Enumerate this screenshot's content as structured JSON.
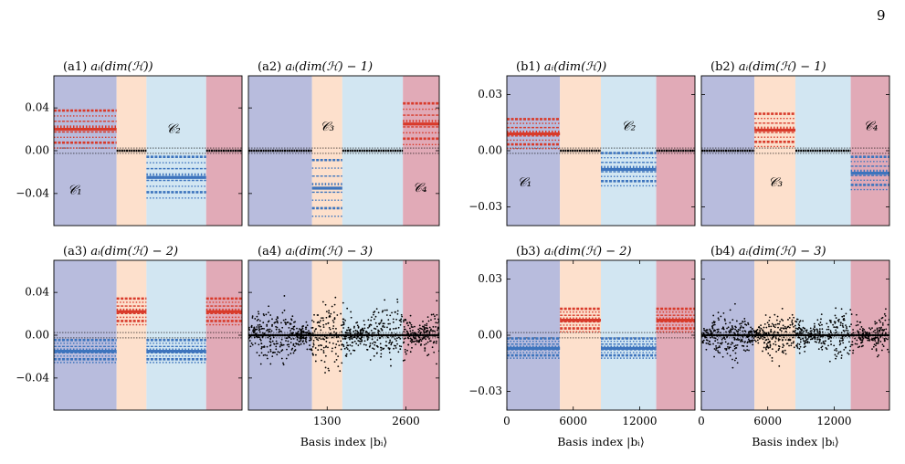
{
  "page": {
    "number": "9"
  },
  "chart_data": [
    {
      "type": "scatter",
      "panel": "(a1)",
      "title": "aᵢ(dim(ℋ))",
      "xlabel": "",
      "ylabel": "",
      "xlim": [
        0,
        3150
      ],
      "ylim": [
        -0.07,
        0.07
      ],
      "xticks": [],
      "yticks": [
        0.04,
        0,
        -0.04
      ],
      "ytick_labels": [
        "0.04",
        "0.00",
        "−0.04"
      ],
      "regions": [
        {
          "from": 0,
          "to": 1050,
          "color": "#b8bcdd"
        },
        {
          "from": 1050,
          "to": 1550,
          "color": "#fde0cc"
        },
        {
          "from": 1550,
          "to": 2550,
          "color": "#d2e6f2"
        },
        {
          "from": 2550,
          "to": 3150,
          "color": "#e1aab7"
        }
      ],
      "bands": [
        {
          "from": 0,
          "to": 1050,
          "center": 0.02,
          "half": 0.02,
          "color": "#d83a2a"
        },
        {
          "from": 1550,
          "to": 2550,
          "center": -0.025,
          "half": 0.022,
          "color": "#3d74bd"
        }
      ],
      "noise": 0,
      "labels": [
        {
          "text": "𝒞₁",
          "x": 350,
          "y": -0.037
        },
        {
          "text": "𝒞₂",
          "x": 2000,
          "y": 0.02
        }
      ]
    },
    {
      "type": "scatter",
      "panel": "(a2)",
      "title": "aᵢ(dim(ℋ) − 1)",
      "xlabel": "",
      "ylabel": "",
      "xlim": [
        0,
        3150
      ],
      "ylim": [
        -0.07,
        0.07
      ],
      "xticks": [],
      "yticks": [
        0.04,
        0,
        -0.04
      ],
      "ytick_labels": [],
      "regions": [
        {
          "from": 0,
          "to": 1050,
          "color": "#b8bcdd"
        },
        {
          "from": 1050,
          "to": 1550,
          "color": "#fde0cc"
        },
        {
          "from": 1550,
          "to": 2550,
          "color": "#d2e6f2"
        },
        {
          "from": 2550,
          "to": 3150,
          "color": "#e1aab7"
        }
      ],
      "bands": [
        {
          "from": 1050,
          "to": 1550,
          "center": -0.035,
          "half": 0.03,
          "color": "#3d74bd"
        },
        {
          "from": 2550,
          "to": 3150,
          "center": 0.025,
          "half": 0.022,
          "color": "#d83a2a"
        }
      ],
      "noise": 0,
      "labels": [
        {
          "text": "𝒞₃",
          "x": 1300,
          "y": 0.022
        },
        {
          "text": "𝒞₄",
          "x": 2830,
          "y": -0.035
        }
      ]
    },
    {
      "type": "scatter",
      "panel": "(a3)",
      "title": "aᵢ(dim(ℋ) − 2)",
      "xlabel": "",
      "ylabel": "",
      "xlim": [
        0,
        3150
      ],
      "ylim": [
        -0.07,
        0.07
      ],
      "xticks": [],
      "yticks": [
        0.04,
        0,
        -0.04
      ],
      "ytick_labels": [
        "0.04",
        "0.00",
        "−0.04"
      ],
      "regions": [
        {
          "from": 0,
          "to": 1050,
          "color": "#b8bcdd"
        },
        {
          "from": 1050,
          "to": 1550,
          "color": "#fde0cc"
        },
        {
          "from": 1550,
          "to": 2550,
          "color": "#d2e6f2"
        },
        {
          "from": 2550,
          "to": 3150,
          "color": "#e1aab7"
        }
      ],
      "bands": [
        {
          "from": 0,
          "to": 1050,
          "center": -0.015,
          "half": 0.012,
          "color": "#3d74bd"
        },
        {
          "from": 1050,
          "to": 1550,
          "center": 0.022,
          "half": 0.014,
          "color": "#d83a2a"
        },
        {
          "from": 1550,
          "to": 2550,
          "center": -0.015,
          "half": 0.012,
          "color": "#3d74bd"
        },
        {
          "from": 2550,
          "to": 3150,
          "center": 0.022,
          "half": 0.014,
          "color": "#d83a2a"
        }
      ],
      "noise": 0,
      "labels": []
    },
    {
      "type": "scatter",
      "panel": "(a4)",
      "title": "aᵢ(dim(ℋ) − 3)",
      "xlabel": "Basis index |bᵢ⟩",
      "ylabel": "",
      "xlim": [
        0,
        3150
      ],
      "ylim": [
        -0.07,
        0.07
      ],
      "xticks": [
        1300,
        2600
      ],
      "xtick_labels": [
        "1300",
        "2600"
      ],
      "yticks": [
        0.04,
        0,
        -0.04
      ],
      "ytick_labels": [],
      "regions": [
        {
          "from": 0,
          "to": 1050,
          "color": "#b8bcdd"
        },
        {
          "from": 1050,
          "to": 1550,
          "color": "#fde0cc"
        },
        {
          "from": 1550,
          "to": 2550,
          "color": "#d2e6f2"
        },
        {
          "from": 2550,
          "to": 3150,
          "color": "#e1aab7"
        }
      ],
      "bands": [],
      "noise": 0.045,
      "labels": []
    },
    {
      "type": "scatter",
      "panel": "(b1)",
      "title": "aᵢ(dim(ℋ))",
      "xlabel": "",
      "ylabel": "",
      "xlim": [
        0,
        17000
      ],
      "ylim": [
        -0.04,
        0.04
      ],
      "xticks": [],
      "yticks": [
        0.03,
        0,
        -0.03
      ],
      "ytick_labels": [
        "0.03",
        "0.00",
        "−0.03"
      ],
      "regions": [
        {
          "from": 0,
          "to": 4800,
          "color": "#b8bcdd"
        },
        {
          "from": 4800,
          "to": 8500,
          "color": "#fde0cc"
        },
        {
          "from": 8500,
          "to": 13500,
          "color": "#d2e6f2"
        },
        {
          "from": 13500,
          "to": 17000,
          "color": "#e1aab7"
        }
      ],
      "bands": [
        {
          "from": 0,
          "to": 4800,
          "center": 0.009,
          "half": 0.009,
          "color": "#d83a2a"
        },
        {
          "from": 8500,
          "to": 13500,
          "center": -0.01,
          "half": 0.01,
          "color": "#3d74bd"
        }
      ],
      "noise": 0,
      "labels": [
        {
          "text": "𝒞₁",
          "x": 1600,
          "y": -0.017
        },
        {
          "text": "𝒞₂",
          "x": 11000,
          "y": 0.013
        }
      ]
    },
    {
      "type": "scatter",
      "panel": "(b2)",
      "title": "aᵢ(dim(ℋ) − 1)",
      "xlabel": "",
      "ylabel": "",
      "xlim": [
        0,
        17000
      ],
      "ylim": [
        -0.04,
        0.04
      ],
      "xticks": [],
      "yticks": [
        0.03,
        0,
        -0.03
      ],
      "ytick_labels": [],
      "regions": [
        {
          "from": 0,
          "to": 4800,
          "color": "#b8bcdd"
        },
        {
          "from": 4800,
          "to": 8500,
          "color": "#fde0cc"
        },
        {
          "from": 8500,
          "to": 13500,
          "color": "#d2e6f2"
        },
        {
          "from": 13500,
          "to": 17000,
          "color": "#e1aab7"
        }
      ],
      "bands": [
        {
          "from": 4800,
          "to": 8500,
          "center": 0.011,
          "half": 0.01,
          "color": "#d83a2a"
        },
        {
          "from": 13500,
          "to": 17000,
          "center": -0.012,
          "half": 0.01,
          "color": "#3d74bd"
        }
      ],
      "noise": 0,
      "labels": [
        {
          "text": "𝒞₃",
          "x": 6700,
          "y": -0.017
        },
        {
          "text": "𝒞₄",
          "x": 15300,
          "y": 0.013
        }
      ]
    },
    {
      "type": "scatter",
      "panel": "(b3)",
      "title": "aᵢ(dim(ℋ) − 2)",
      "xlabel": "Basis index |bᵢ⟩",
      "ylabel": "",
      "xlim": [
        0,
        17000
      ],
      "ylim": [
        -0.04,
        0.04
      ],
      "xticks": [
        0,
        6000,
        12000
      ],
      "xtick_labels": [
        "0",
        "6000",
        "12000"
      ],
      "yticks": [
        0.03,
        0,
        -0.03
      ],
      "ytick_labels": [
        "0.03",
        "0.00",
        "−0.03"
      ],
      "regions": [
        {
          "from": 0,
          "to": 4800,
          "color": "#b8bcdd"
        },
        {
          "from": 4800,
          "to": 8500,
          "color": "#fde0cc"
        },
        {
          "from": 8500,
          "to": 13500,
          "color": "#d2e6f2"
        },
        {
          "from": 13500,
          "to": 17000,
          "color": "#e1aab7"
        }
      ],
      "bands": [
        {
          "from": 0,
          "to": 4800,
          "center": -0.007,
          "half": 0.006,
          "color": "#3d74bd"
        },
        {
          "from": 4800,
          "to": 8500,
          "center": 0.008,
          "half": 0.007,
          "color": "#d83a2a"
        },
        {
          "from": 8500,
          "to": 13500,
          "center": -0.007,
          "half": 0.006,
          "color": "#3d74bd"
        },
        {
          "from": 13500,
          "to": 17000,
          "center": 0.008,
          "half": 0.007,
          "color": "#d83a2a"
        }
      ],
      "noise": 0,
      "labels": []
    },
    {
      "type": "scatter",
      "panel": "(b4)",
      "title": "aᵢ(dim(ℋ) − 3)",
      "xlabel": "Basis index |bᵢ⟩",
      "ylabel": "",
      "xlim": [
        0,
        17000
      ],
      "ylim": [
        -0.04,
        0.04
      ],
      "xticks": [
        0,
        6000,
        12000
      ],
      "xtick_labels": [
        "0",
        "6000",
        "12000"
      ],
      "yticks": [
        0.03,
        0,
        -0.03
      ],
      "ytick_labels": [],
      "regions": [
        {
          "from": 0,
          "to": 4800,
          "color": "#b8bcdd"
        },
        {
          "from": 4800,
          "to": 8500,
          "color": "#fde0cc"
        },
        {
          "from": 8500,
          "to": 13500,
          "color": "#d2e6f2"
        },
        {
          "from": 13500,
          "to": 17000,
          "color": "#e1aab7"
        }
      ],
      "bands": [],
      "noise": 0.02,
      "labels": []
    }
  ]
}
